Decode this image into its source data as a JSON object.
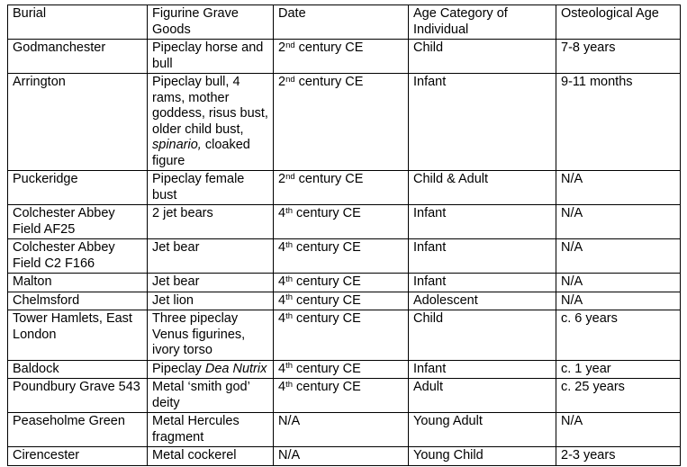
{
  "table": {
    "columns": [
      {
        "key": "burial",
        "label": "Burial"
      },
      {
        "key": "goods",
        "label": "Figurine Grave Goods"
      },
      {
        "key": "date",
        "label": "Date"
      },
      {
        "key": "age_category",
        "label": "Age Category of Individual"
      },
      {
        "key": "osteo_age",
        "label": "Osteological Age"
      }
    ],
    "rows": [
      {
        "burial": "Godmanchester",
        "goods": "Pipeclay horse and bull",
        "date": [
          {
            "t": "2"
          },
          {
            "t": "nd",
            "sup": true
          },
          {
            "t": " century CE"
          }
        ],
        "age_category": "Child",
        "osteo_age": "7-8 years"
      },
      {
        "burial": "Arrington",
        "goods": [
          {
            "t": "Pipeclay bull, 4 rams, mother goddess, risus bust, older child bust, "
          },
          {
            "t": "spinario,",
            "italic": true
          },
          {
            "t": " cloaked figure"
          }
        ],
        "date": [
          {
            "t": "2"
          },
          {
            "t": "nd",
            "sup": true
          },
          {
            "t": " century CE"
          }
        ],
        "age_category": "Infant",
        "osteo_age": "9-11 months"
      },
      {
        "burial": "Puckeridge",
        "goods": "Pipeclay female bust",
        "date": [
          {
            "t": "2"
          },
          {
            "t": "nd",
            "sup": true
          },
          {
            "t": " century CE"
          }
        ],
        "age_category": "Child & Adult",
        "osteo_age": "N/A"
      },
      {
        "burial": "Colchester Abbey Field AF25",
        "goods": "2 jet bears",
        "date": [
          {
            "t": "4"
          },
          {
            "t": "th",
            "sup": true
          },
          {
            "t": " century CE"
          }
        ],
        "age_category": "Infant",
        "osteo_age": "N/A"
      },
      {
        "burial": "Colchester Abbey Field C2 F166",
        "goods": "Jet bear",
        "date": [
          {
            "t": "4"
          },
          {
            "t": "th",
            "sup": true
          },
          {
            "t": " century CE"
          }
        ],
        "age_category": "Infant",
        "osteo_age": "N/A"
      },
      {
        "burial": "Malton",
        "goods": "Jet bear",
        "date": [
          {
            "t": "4"
          },
          {
            "t": "th",
            "sup": true
          },
          {
            "t": " century CE"
          }
        ],
        "age_category": "Infant",
        "osteo_age": "N/A"
      },
      {
        "burial": "Chelmsford",
        "goods": "Jet lion",
        "date": [
          {
            "t": "4"
          },
          {
            "t": "th",
            "sup": true
          },
          {
            "t": " century CE"
          }
        ],
        "age_category": "Adolescent",
        "osteo_age": "N/A"
      },
      {
        "burial": "Tower Hamlets, East London",
        "goods": "Three pipeclay Venus figurines, ivory torso",
        "date": [
          {
            "t": "4"
          },
          {
            "t": "th",
            "sup": true
          },
          {
            "t": " century CE"
          }
        ],
        "age_category": "Child",
        "osteo_age": "c. 6 years"
      },
      {
        "burial": "Baldock",
        "goods": [
          {
            "t": "Pipeclay "
          },
          {
            "t": "Dea Nutrix",
            "italic": true
          }
        ],
        "date": [
          {
            "t": "4"
          },
          {
            "t": "th",
            "sup": true
          },
          {
            "t": " century CE"
          }
        ],
        "age_category": "Infant",
        "osteo_age": "c. 1 year"
      },
      {
        "burial": "Poundbury Grave 543",
        "goods": "Metal ‘smith god’ deity",
        "date": [
          {
            "t": "4"
          },
          {
            "t": "th",
            "sup": true
          },
          {
            "t": " century CE"
          }
        ],
        "age_category": "Adult",
        "osteo_age": "c. 25 years"
      },
      {
        "burial": "Peaseholme Green",
        "goods": "Metal Hercules fragment",
        "date": "N/A",
        "age_category": "Young Adult",
        "osteo_age": "N/A"
      },
      {
        "burial": "Cirencester",
        "goods": "Metal cockerel",
        "date": "N/A",
        "age_category": "Young Child",
        "osteo_age": "2-3 years"
      }
    ]
  }
}
